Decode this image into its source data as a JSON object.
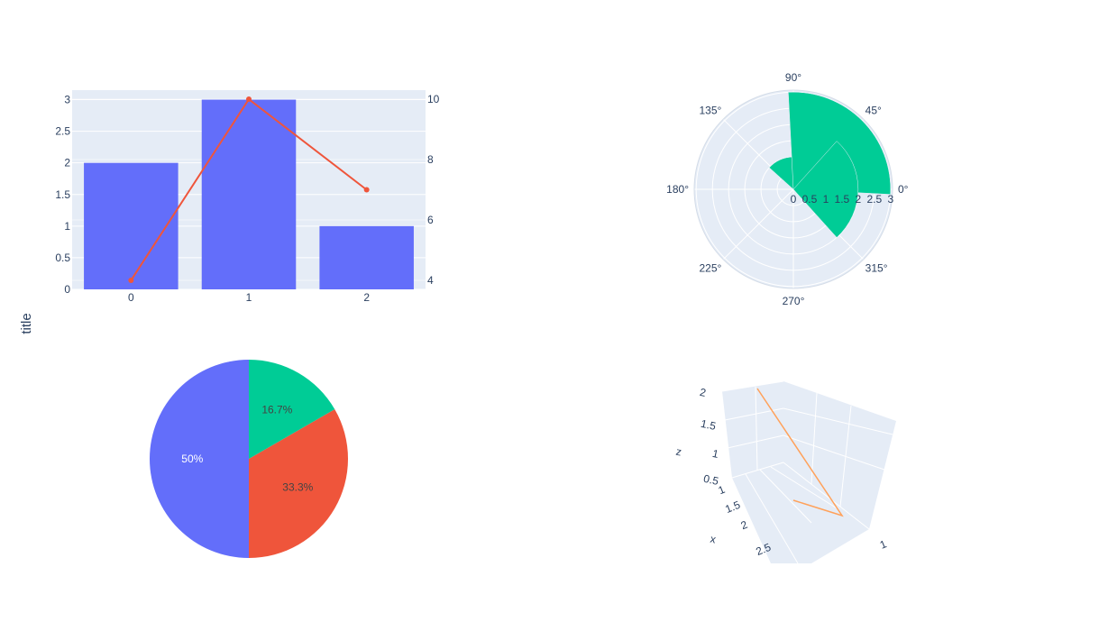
{
  "figure": {
    "ylabel": "title"
  },
  "colors": {
    "bar": "#636efa",
    "line": "#ef553b",
    "polar": "#00cc96",
    "line3d": "#ffa15a",
    "plot_bg": "#e5ecf6",
    "grid": "#ffffff",
    "text": "#2a3f5f"
  },
  "chart_data": [
    {
      "type": "bar",
      "subtype": "bar + line (secondary y axis)",
      "categories": [
        "0",
        "1",
        "2"
      ],
      "y_ticks": [
        "0",
        "0.5",
        "1",
        "1.5",
        "2",
        "2.5",
        "3"
      ],
      "y2_ticks": [
        "4",
        "6",
        "8",
        "10"
      ],
      "series": [
        {
          "type": "bar",
          "values": [
            2,
            3,
            1
          ],
          "axis": "y"
        },
        {
          "type": "line",
          "values": [
            4,
            10,
            7
          ],
          "axis": "y2",
          "markers": true
        }
      ],
      "ylim": [
        0,
        3.15
      ],
      "y2lim": [
        3.7,
        10.3
      ],
      "ylabel": "title",
      "grid": true
    },
    {
      "type": "barpolar",
      "r": [
        1,
        3,
        2
      ],
      "theta": [
        90,
        45,
        0
      ],
      "radial_ticks": [
        "0",
        "0.5",
        "1",
        "1.5",
        "2",
        "2.5",
        "3"
      ],
      "angular_ticks": [
        "0°",
        "45°",
        "90°",
        "135°",
        "180°",
        "225°",
        "270°",
        "315°"
      ],
      "rlim": [
        0,
        3
      ],
      "grid": true
    },
    {
      "type": "pie",
      "values": [
        3,
        2,
        1
      ],
      "labels_text": [
        "50%",
        "33.3%",
        "16.7%"
      ],
      "colors": [
        "#636efa",
        "#ef553b",
        "#00cc96"
      ],
      "direction": "counterclockwise",
      "rotation": 0
    },
    {
      "type": "scatter3d",
      "mode": "lines",
      "x": [
        1,
        2,
        3
      ],
      "y": [
        1,
        2,
        3
      ],
      "z": [
        0.5,
        1,
        2
      ],
      "axis_titles": {
        "x": "x",
        "z": "z"
      },
      "x_ticks": [
        "1",
        "1.5",
        "2",
        "2.5"
      ],
      "y_ticks": [
        "1"
      ],
      "z_ticks": [
        "0.5",
        "1",
        "1.5",
        "2"
      ]
    }
  ]
}
